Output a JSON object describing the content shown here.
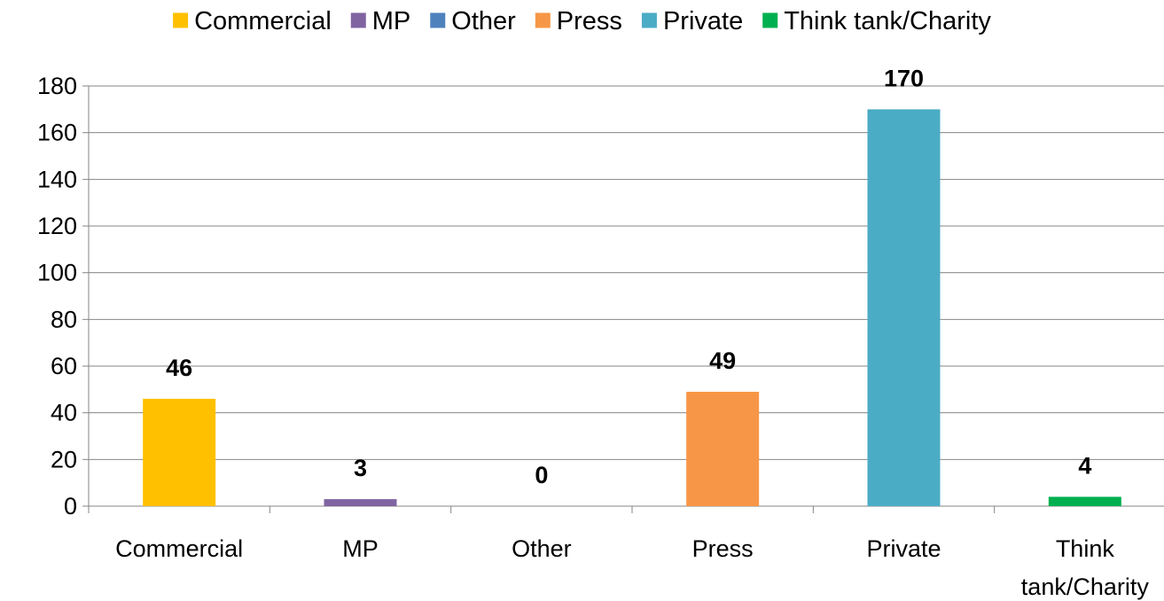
{
  "chart_data": {
    "type": "bar",
    "categories": [
      "Commercial",
      "MP",
      "Other",
      "Press",
      "Private",
      "Think tank/Charity"
    ],
    "category_labels": [
      [
        "Commercial"
      ],
      [
        "MP"
      ],
      [
        "Other"
      ],
      [
        "Press"
      ],
      [
        "Private"
      ],
      [
        "Think",
        "tank/Charity"
      ]
    ],
    "values": [
      46,
      3,
      0,
      49,
      170,
      4
    ],
    "colors": [
      "#FFC000",
      "#8064A2",
      "#4F81BD",
      "#F79646",
      "#4BACC6",
      "#00B050"
    ],
    "ylim": [
      0,
      180
    ],
    "yticks": [
      0,
      20,
      40,
      60,
      80,
      100,
      120,
      140,
      160,
      180
    ],
    "grid": true,
    "legend_position": "top",
    "legend": [
      "Commercial",
      "MP",
      "Other",
      "Press",
      "Private",
      "Think tank/Charity"
    ]
  }
}
